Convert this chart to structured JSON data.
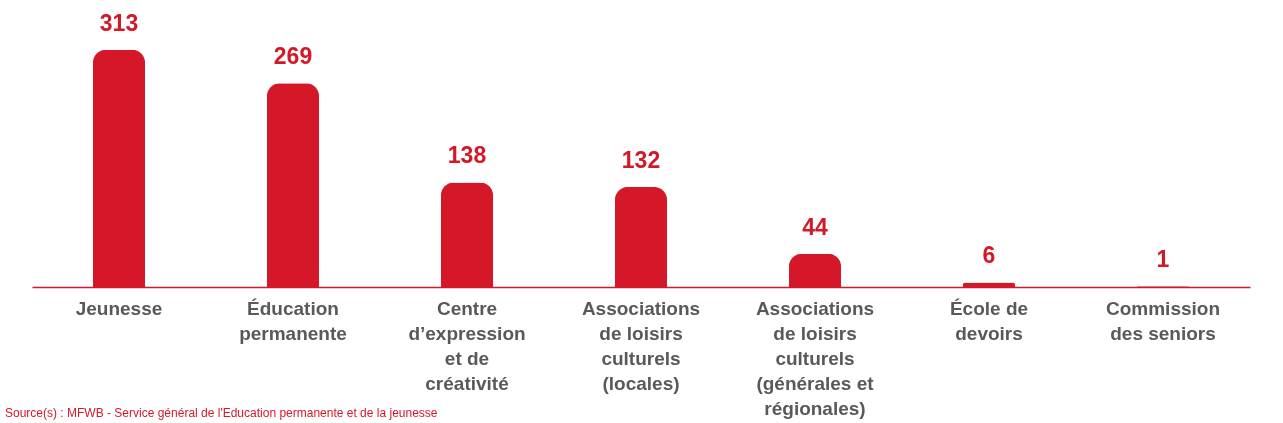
{
  "chart_data": {
    "type": "bar",
    "categories": [
      "Jeunesse",
      "Éducation permanente",
      "Centre d’expression et de créativité",
      "Associations de loisirs culturels (locales)",
      "Associations de loisirs culturels (générales et régionales)",
      "École de devoirs",
      "Commission des seniors"
    ],
    "values": [
      313,
      269,
      138,
      132,
      44,
      6,
      1
    ],
    "color": "#d51827",
    "data_labels": true,
    "annotations": [
      "Source(s) : MFWB - Service général de l'Education permanente et de la jeunesse"
    ]
  }
}
